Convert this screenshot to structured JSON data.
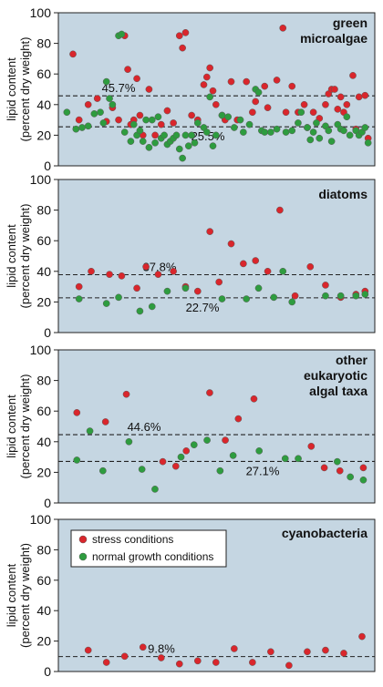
{
  "colors": {
    "panel_bg": "#c5d6e2",
    "stress": "#d9262c",
    "normal": "#2e9c3f",
    "dot_stroke": "#5a5a5a",
    "line": "#222222"
  },
  "ylabel_line1": "lipid content",
  "ylabel_line2": "(percent dry weight)",
  "legend": {
    "stress": "stress conditions",
    "normal": "normal growth conditions"
  },
  "chart_data": [
    {
      "type": "scatter",
      "title_lines": [
        "green",
        "microalgae"
      ],
      "ylim": [
        0,
        100
      ],
      "yticks": [
        "0",
        "20",
        "40",
        "60",
        "80",
        "100"
      ],
      "hlines": [
        {
          "value": 45.7,
          "label": "45.7%"
        },
        {
          "value": 25.5,
          "label": "25.5%"
        }
      ],
      "series": [
        {
          "key": "stress",
          "points": [
            [
              3,
              73
            ],
            [
              5,
              30
            ],
            [
              8,
              40
            ],
            [
              11,
              44
            ],
            [
              14,
              29
            ],
            [
              16,
              38
            ],
            [
              18,
              30
            ],
            [
              20,
              85
            ],
            [
              21,
              63
            ],
            [
              22,
              27
            ],
            [
              23,
              30
            ],
            [
              24,
              57
            ],
            [
              25,
              33
            ],
            [
              26,
              20
            ],
            [
              28,
              50
            ],
            [
              30,
              20
            ],
            [
              32,
              27
            ],
            [
              34,
              36
            ],
            [
              36,
              28
            ],
            [
              38,
              85
            ],
            [
              39,
              77
            ],
            [
              40,
              87
            ],
            [
              42,
              33
            ],
            [
              44,
              30
            ],
            [
              46,
              53
            ],
            [
              47,
              58
            ],
            [
              48,
              64
            ],
            [
              49,
              49
            ],
            [
              50,
              40
            ],
            [
              52,
              33
            ],
            [
              53,
              30
            ],
            [
              55,
              55
            ],
            [
              57,
              30
            ],
            [
              60,
              55
            ],
            [
              62,
              35
            ],
            [
              63,
              42
            ],
            [
              66,
              52
            ],
            [
              67,
              38
            ],
            [
              70,
              56
            ],
            [
              72,
              90
            ],
            [
              73,
              35
            ],
            [
              75,
              52
            ],
            [
              77,
              35
            ],
            [
              79,
              40
            ],
            [
              80,
              25
            ],
            [
              82,
              35
            ],
            [
              84,
              31
            ],
            [
              86,
              40
            ],
            [
              87,
              47
            ],
            [
              88,
              50
            ],
            [
              89,
              50
            ],
            [
              90,
              37
            ],
            [
              91,
              45
            ],
            [
              92,
              35
            ],
            [
              93,
              40
            ],
            [
              95,
              59
            ],
            [
              96,
              24
            ],
            [
              97,
              45
            ],
            [
              99,
              46
            ],
            [
              100,
              18
            ]
          ]
        },
        {
          "key": "normal",
          "points": [
            [
              1,
              35
            ],
            [
              4,
              24
            ],
            [
              6,
              25
            ],
            [
              8,
              26
            ],
            [
              10,
              34
            ],
            [
              12,
              35
            ],
            [
              13,
              28
            ],
            [
              14,
              55
            ],
            [
              15,
              44
            ],
            [
              16,
              40
            ],
            [
              18,
              85
            ],
            [
              19,
              86
            ],
            [
              20,
              22
            ],
            [
              22,
              16
            ],
            [
              23,
              27
            ],
            [
              24,
              20
            ],
            [
              25,
              23
            ],
            [
              26,
              16
            ],
            [
              27,
              30
            ],
            [
              28,
              12
            ],
            [
              29,
              30
            ],
            [
              30,
              15
            ],
            [
              31,
              32
            ],
            [
              32,
              18
            ],
            [
              33,
              20
            ],
            [
              34,
              14
            ],
            [
              35,
              16
            ],
            [
              36,
              18
            ],
            [
              37,
              20
            ],
            [
              38,
              11
            ],
            [
              39,
              5
            ],
            [
              40,
              20
            ],
            [
              41,
              13
            ],
            [
              42,
              20
            ],
            [
              43,
              15
            ],
            [
              44,
              28
            ],
            [
              46,
              25
            ],
            [
              47,
              22
            ],
            [
              48,
              45
            ],
            [
              49,
              13
            ],
            [
              50,
              20
            ],
            [
              52,
              33
            ],
            [
              54,
              32
            ],
            [
              56,
              25
            ],
            [
              58,
              30
            ],
            [
              59,
              22
            ],
            [
              61,
              27
            ],
            [
              63,
              50
            ],
            [
              64,
              48
            ],
            [
              65,
              23
            ],
            [
              66,
              22
            ],
            [
              68,
              22
            ],
            [
              70,
              24
            ],
            [
              73,
              22
            ],
            [
              75,
              23
            ],
            [
              77,
              28
            ],
            [
              78,
              35
            ],
            [
              80,
              25
            ],
            [
              81,
              17
            ],
            [
              82,
              22
            ],
            [
              83,
              28
            ],
            [
              84,
              18
            ],
            [
              86,
              26
            ],
            [
              87,
              23
            ],
            [
              88,
              16
            ],
            [
              90,
              27
            ],
            [
              91,
              24
            ],
            [
              92,
              23
            ],
            [
              93,
              32
            ],
            [
              94,
              20
            ],
            [
              96,
              23
            ],
            [
              97,
              20
            ],
            [
              98,
              22
            ],
            [
              99,
              25
            ],
            [
              100,
              15
            ]
          ]
        }
      ]
    },
    {
      "type": "scatter",
      "title_lines": [
        "diatoms"
      ],
      "ylim": [
        0,
        100
      ],
      "yticks": [
        "0",
        "20",
        "40",
        "60",
        "80",
        "100"
      ],
      "hlines": [
        {
          "value": 37.8,
          "label": "37.8%"
        },
        {
          "value": 22.7,
          "label": "22.7%"
        }
      ],
      "series": [
        {
          "key": "stress",
          "points": [
            [
              5,
              30
            ],
            [
              9,
              40
            ],
            [
              15,
              38
            ],
            [
              19,
              37
            ],
            [
              24,
              29
            ],
            [
              27,
              43
            ],
            [
              31,
              38
            ],
            [
              36,
              40
            ],
            [
              40,
              30
            ],
            [
              44,
              27
            ],
            [
              48,
              66
            ],
            [
              51,
              33
            ],
            [
              55,
              58
            ],
            [
              59,
              45
            ],
            [
              63,
              47
            ],
            [
              67,
              40
            ],
            [
              71,
              80
            ],
            [
              76,
              24
            ],
            [
              81,
              43
            ],
            [
              86,
              31
            ],
            [
              91,
              23
            ],
            [
              96,
              25
            ],
            [
              99,
              27
            ]
          ]
        },
        {
          "key": "normal",
          "points": [
            [
              5,
              22
            ],
            [
              14,
              19
            ],
            [
              18,
              23
            ],
            [
              25,
              14
            ],
            [
              29,
              17
            ],
            [
              34,
              27
            ],
            [
              40,
              29
            ],
            [
              52,
              22
            ],
            [
              60,
              22
            ],
            [
              64,
              29
            ],
            [
              69,
              23
            ],
            [
              72,
              40
            ],
            [
              75,
              20
            ],
            [
              86,
              24
            ],
            [
              91,
              24
            ],
            [
              96,
              24
            ],
            [
              99,
              25
            ]
          ]
        }
      ]
    },
    {
      "type": "scatter",
      "title_lines": [
        "other",
        "eukaryotic",
        "algal taxa"
      ],
      "ylim": [
        0,
        100
      ],
      "yticks": [
        "0",
        "20",
        "40",
        "60",
        "80",
        "100"
      ],
      "hlines": [
        {
          "value": 44.6,
          "label": "44.6%"
        },
        {
          "value": 27.1,
          "label": "27.1%"
        }
      ],
      "series": [
        {
          "key": "stress",
          "points": [
            [
              5,
              59
            ],
            [
              16,
              53
            ],
            [
              24,
              71
            ],
            [
              38,
              27
            ],
            [
              43,
              24
            ],
            [
              47,
              34
            ],
            [
              56,
              72
            ],
            [
              62,
              41
            ],
            [
              67,
              55
            ],
            [
              73,
              68
            ],
            [
              95,
              37
            ],
            [
              100,
              23
            ],
            [
              106,
              21
            ],
            [
              115,
              23
            ]
          ]
        },
        {
          "key": "normal",
          "points": [
            [
              5,
              28
            ],
            [
              10,
              47
            ],
            [
              15,
              21
            ],
            [
              25,
              40
            ],
            [
              30,
              22
            ],
            [
              35,
              9
            ],
            [
              45,
              30
            ],
            [
              50,
              38
            ],
            [
              55,
              41
            ],
            [
              60,
              21
            ],
            [
              65,
              31
            ],
            [
              75,
              34
            ],
            [
              85,
              29
            ],
            [
              90,
              29
            ],
            [
              105,
              27
            ],
            [
              110,
              17
            ],
            [
              115,
              15
            ]
          ]
        }
      ]
    },
    {
      "type": "scatter",
      "title_lines": [
        "cyanobacteria"
      ],
      "ylim": [
        0,
        100
      ],
      "yticks": [
        "0",
        "20",
        "40",
        "60",
        "80",
        "100"
      ],
      "hlines": [
        {
          "value": 9.8,
          "label": "9.8%"
        }
      ],
      "series": [
        {
          "key": "stress",
          "points": [
            [
              8,
              14
            ],
            [
              14,
              6
            ],
            [
              20,
              10
            ],
            [
              26,
              16
            ],
            [
              32,
              9
            ],
            [
              38,
              5
            ],
            [
              44,
              7
            ],
            [
              50,
              6
            ],
            [
              56,
              15
            ],
            [
              62,
              6
            ],
            [
              68,
              13
            ],
            [
              74,
              4
            ],
            [
              80,
              13
            ],
            [
              86,
              14
            ],
            [
              92,
              12
            ],
            [
              98,
              23
            ]
          ]
        }
      ]
    }
  ]
}
